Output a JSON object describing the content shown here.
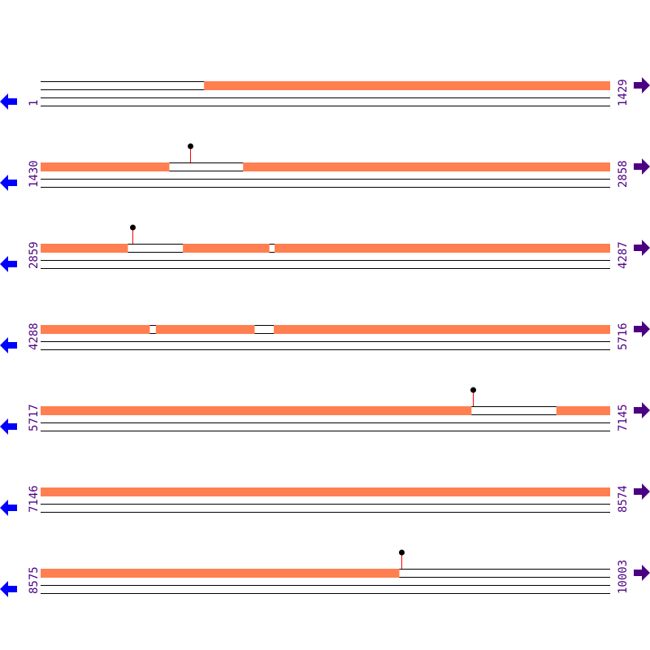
{
  "colors": {
    "region": "#ff7f50",
    "stem": "#ff0000",
    "marker": "#000000",
    "left_arrow": "#0000ff",
    "right_arrow": "#4b0082",
    "label": "#4b0082"
  },
  "icons": {
    "left": "arrow-left-icon",
    "right": "arrow-right-icon"
  },
  "rows": [
    {
      "start": "1",
      "end": "1429",
      "regions": [
        [
          411,
          1429
        ]
      ],
      "markers": []
    },
    {
      "start": "1430",
      "end": "2858",
      "regions": [
        [
          1430,
          1752
        ],
        [
          1938,
          2858
        ]
      ],
      "markers": [
        1805
      ]
    },
    {
      "start": "2859",
      "end": "4287",
      "regions": [
        [
          2859,
          3077
        ],
        [
          3216,
          3432
        ],
        [
          3446,
          4287
        ]
      ],
      "markers": [
        3089
      ]
    },
    {
      "start": "4288",
      "end": "5716",
      "regions": [
        [
          4288,
          4561
        ],
        [
          4577,
          4824
        ],
        [
          4873,
          5716
        ]
      ],
      "markers": []
    },
    {
      "start": "5717",
      "end": "7145",
      "regions": [
        [
          5717,
          6797
        ],
        [
          7011,
          7145
        ]
      ],
      "markers": [
        6801
      ]
    },
    {
      "start": "7146",
      "end": "8574",
      "regions": [
        [
          7146,
          8574
        ]
      ],
      "markers": []
    },
    {
      "start": "8575",
      "end": "10003",
      "regions": [
        [
          8575,
          9474
        ]
      ],
      "markers": [
        9480
      ]
    }
  ]
}
